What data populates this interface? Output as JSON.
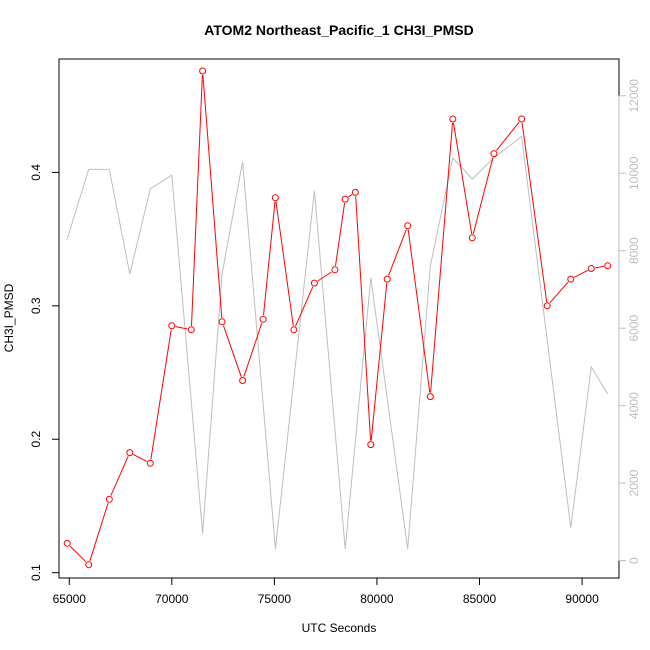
{
  "chart_data": {
    "type": "line",
    "title": "ATOM2 Northeast_Pacific_1 CH3I_PMSD",
    "xlabel": "UTC Seconds",
    "ylabel": "CH3I_PMSD",
    "xlim": [
      64500,
      91800
    ],
    "ylim": [
      0.096,
      0.485
    ],
    "y2lim": [
      -450,
      12950
    ],
    "x_ticks": [
      65000,
      70000,
      75000,
      80000,
      85000,
      90000
    ],
    "y_ticks": [
      0.1,
      0.2,
      0.3,
      0.4
    ],
    "y2_ticks": [
      0,
      2000,
      4000,
      6000,
      8000,
      10000,
      12000
    ],
    "colors": {
      "primary": "#ff0000",
      "secondary": "#bebebe",
      "axis": "#000000",
      "y2_axis": "#bebebe"
    },
    "series": [
      {
        "axis": "left",
        "style": "line-with-open-circles",
        "x": [
          64900,
          65950,
          66950,
          67950,
          68950,
          70000,
          70950,
          71500,
          72450,
          73450,
          74450,
          75050,
          75950,
          76950,
          77950,
          78450,
          78950,
          79700,
          80500,
          81500,
          82600,
          83700,
          84650,
          85700,
          87050,
          88300,
          89450,
          90450,
          91250
        ],
        "y": [
          0.122,
          0.106,
          0.155,
          0.19,
          0.182,
          0.285,
          0.282,
          0.476,
          0.288,
          0.244,
          0.29,
          0.381,
          0.282,
          0.317,
          0.327,
          0.38,
          0.385,
          0.196,
          0.32,
          0.36,
          0.232,
          0.44,
          0.351,
          0.414,
          0.44,
          0.3,
          0.32,
          0.328,
          0.33
        ]
      },
      {
        "axis": "right",
        "style": "line",
        "x": [
          64900,
          65950,
          66950,
          67950,
          68950,
          70000,
          71500,
          72450,
          73450,
          75050,
          76950,
          78450,
          79700,
          81500,
          82600,
          83700,
          84650,
          85700,
          87050,
          89450,
          90450,
          91250
        ],
        "y": [
          8300,
          10100,
          10100,
          7400,
          9600,
          9950,
          700,
          7400,
          10300,
          300,
          9550,
          300,
          7300,
          300,
          7600,
          10400,
          9850,
          10400,
          10950,
          850,
          5000,
          4300
        ]
      }
    ]
  }
}
